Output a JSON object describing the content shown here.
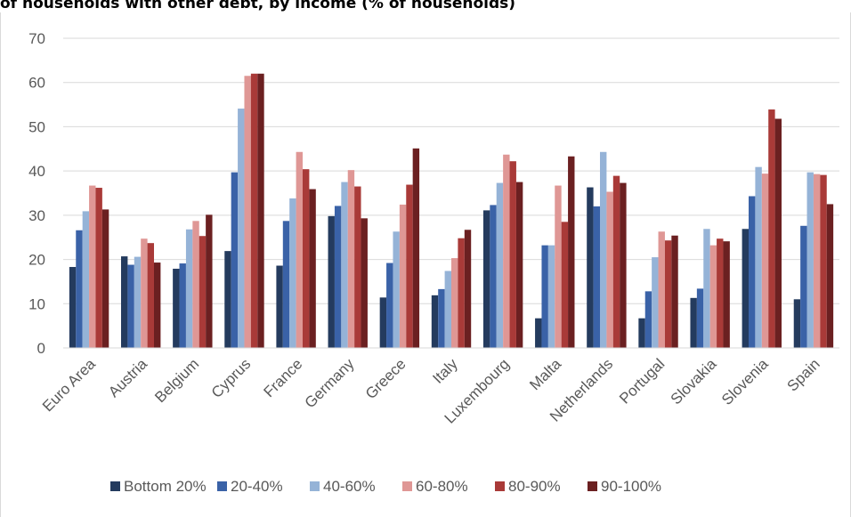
{
  "chart_data": {
    "type": "bar",
    "title": "of households with other debt, by income (% of households)",
    "ylim": [
      0,
      70
    ],
    "yticks": [
      0,
      10,
      20,
      30,
      40,
      50,
      60,
      70
    ],
    "grid": true,
    "legend_position": "bottom",
    "categories": [
      "Euro Area",
      "Austria",
      "Belgium",
      "Cyprus",
      "France",
      "Germany",
      "Greece",
      "Italy",
      "Luxembourg",
      "Malta",
      "Netherlands",
      "Portugal",
      "Slovakia",
      "Slovenia",
      "Spain"
    ],
    "series": [
      {
        "name": "Bottom 20%",
        "color": "#243b5e",
        "values": [
          18.3,
          20.7,
          17.9,
          21.9,
          18.6,
          29.8,
          11.4,
          11.9,
          31.1,
          6.7,
          36.3,
          6.7,
          11.3,
          26.9,
          11.0
        ]
      },
      {
        "name": "20-40%",
        "color": "#3a62a7",
        "values": [
          26.6,
          18.8,
          19.1,
          39.7,
          28.7,
          32.1,
          19.2,
          13.3,
          32.3,
          23.2,
          32.0,
          12.8,
          13.4,
          34.3,
          27.6
        ]
      },
      {
        "name": "40-60%",
        "color": "#95b3d7",
        "values": [
          30.9,
          20.6,
          26.8,
          54.1,
          33.8,
          37.5,
          26.3,
          17.4,
          37.3,
          23.2,
          44.3,
          20.5,
          26.9,
          40.9,
          39.7
        ]
      },
      {
        "name": "60-80%",
        "color": "#df9795",
        "values": [
          36.7,
          24.7,
          28.7,
          61.5,
          44.3,
          40.2,
          32.4,
          20.3,
          43.7,
          36.7,
          35.3,
          26.3,
          23.2,
          39.4,
          39.3
        ]
      },
      {
        "name": "80-90%",
        "color": "#a93a38",
        "values": [
          36.2,
          23.7,
          25.3,
          62.0,
          40.4,
          36.5,
          36.9,
          24.8,
          42.2,
          28.5,
          38.9,
          24.3,
          24.7,
          53.9,
          39.1
        ]
      },
      {
        "name": "90-100%",
        "color": "#6b2021",
        "values": [
          31.3,
          19.3,
          30.1,
          62.0,
          35.9,
          29.3,
          45.1,
          26.7,
          37.5,
          43.3,
          37.3,
          25.4,
          24.1,
          51.8,
          32.5
        ]
      }
    ]
  }
}
